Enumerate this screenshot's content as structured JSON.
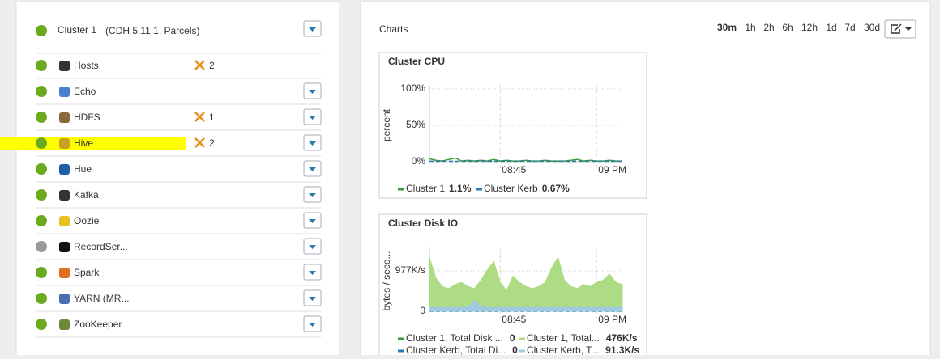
{
  "cluster": {
    "name": "Cluster 1",
    "version": "(CDH 5.11.1, Parcels)",
    "services": [
      {
        "name": "Hosts",
        "status": "good",
        "alerts": 2,
        "menu": false
      },
      {
        "name": "Echo",
        "status": "good",
        "menu": true
      },
      {
        "name": "HDFS",
        "status": "good",
        "alerts": 1,
        "menu": true
      },
      {
        "name": "Hive",
        "status": "good",
        "alerts": 2,
        "menu": true,
        "highlighted": true
      },
      {
        "name": "Hue",
        "status": "good",
        "menu": true
      },
      {
        "name": "Kafka",
        "status": "good",
        "menu": true
      },
      {
        "name": "Oozie",
        "status": "good",
        "menu": true
      },
      {
        "name": "RecordSer...",
        "status": "unknown",
        "menu": true
      },
      {
        "name": "Spark",
        "status": "good",
        "menu": true
      },
      {
        "name": "YARN (MR...",
        "status": "good",
        "menu": true
      },
      {
        "name": "ZooKeeper",
        "status": "good",
        "menu": true
      }
    ]
  },
  "charts_panel": {
    "title": "Charts",
    "time_ranges": [
      "30m",
      "1h",
      "2h",
      "6h",
      "12h",
      "1d",
      "7d",
      "30d"
    ],
    "selected_range": "30m",
    "charts": [
      {
        "type": "line",
        "title": "Cluster CPU",
        "y_label": "percent",
        "ylim": [
          0,
          100
        ],
        "yticks": [
          {
            "value": 0,
            "label": "0%"
          },
          {
            "value": 50,
            "label": "50%"
          },
          {
            "value": 100,
            "label": "100%"
          }
        ],
        "xlim": [
          0,
          30
        ],
        "xticks": [
          {
            "value": 11,
            "label": "08:45"
          },
          {
            "value": 26,
            "label": "09 PM"
          }
        ],
        "series": [
          {
            "name": "Cluster 1",
            "color": "#3a9a3a",
            "stat": "1.1%",
            "values": [
              4,
              2,
              1,
              3,
              5,
              1,
              2,
              1,
              2,
              1,
              3,
              1,
              2,
              1,
              1,
              2,
              1,
              1,
              2,
              1,
              1,
              1,
              2,
              3,
              1,
              2,
              1,
              1,
              2,
              1,
              1
            ]
          },
          {
            "name": "Cluster Kerb",
            "color": "#2a7ab0",
            "stat": "0.67%",
            "dashed": true,
            "values": [
              0.7,
              0.6,
              0.7,
              0.7,
              0.6,
              0.7,
              0.7,
              0.6,
              0.7,
              0.7,
              0.6,
              0.7,
              0.7,
              0.6,
              0.7,
              0.7,
              0.6,
              0.7,
              0.7,
              0.6,
              0.7,
              0.7,
              0.6,
              0.7,
              0.7,
              0.6,
              0.7,
              0.7,
              0.6,
              0.7,
              0.7
            ]
          }
        ]
      },
      {
        "type": "area",
        "title": "Cluster Disk IO",
        "y_label": "bytes / seco...",
        "ylim": [
          0,
          1466
        ],
        "yticks": [
          {
            "value": 0,
            "label": "0"
          },
          {
            "value": 977,
            "label": "977K/s"
          }
        ],
        "xlim": [
          0,
          30
        ],
        "xticks": [
          {
            "value": 11,
            "label": "08:45"
          },
          {
            "value": 26,
            "label": "09 PM"
          }
        ],
        "series": [
          {
            "name": "Cluster 1, Total Disk ...",
            "color": "#3a9a3a",
            "stat": "0",
            "dashed": true,
            "values": [
              0,
              0,
              0,
              0,
              0,
              0,
              0,
              0,
              0,
              0,
              0,
              0,
              0,
              0,
              0,
              0,
              0,
              0,
              0,
              0,
              0,
              0,
              0,
              0,
              0,
              0,
              0,
              0,
              0,
              0,
              0
            ]
          },
          {
            "name": "Cluster 1, Total...",
            "color": "#aedc84",
            "stat": "476K/s",
            "values": [
              1300,
              800,
              600,
              550,
              650,
              700,
              600,
              550,
              750,
              1000,
              1200,
              700,
              500,
              850,
              700,
              600,
              550,
              600,
              700,
              1050,
              1300,
              750,
              600,
              550,
              650,
              600,
              700,
              750,
              900,
              700,
              650
            ]
          },
          {
            "name": "Cluster Kerb, Total Di...",
            "color": "#2a7ab0",
            "stat": "0",
            "dashed": true,
            "values": [
              0,
              0,
              0,
              0,
              0,
              0,
              0,
              0,
              0,
              0,
              0,
              0,
              0,
              0,
              0,
              0,
              0,
              0,
              0,
              0,
              0,
              0,
              0,
              0,
              0,
              0,
              0,
              0,
              0,
              0,
              0
            ]
          },
          {
            "name": "Cluster Kerb, T...",
            "color": "#9ecae1",
            "stat": "91.3K/s",
            "values": [
              90,
              90,
              95,
              90,
              90,
              95,
              100,
              250,
              120,
              90,
              90,
              95,
              90,
              90,
              90,
              95,
              90,
              90,
              90,
              95,
              90,
              90,
              90,
              95,
              90,
              90,
              90,
              95,
              90,
              90,
              90
            ]
          }
        ]
      }
    ]
  }
}
